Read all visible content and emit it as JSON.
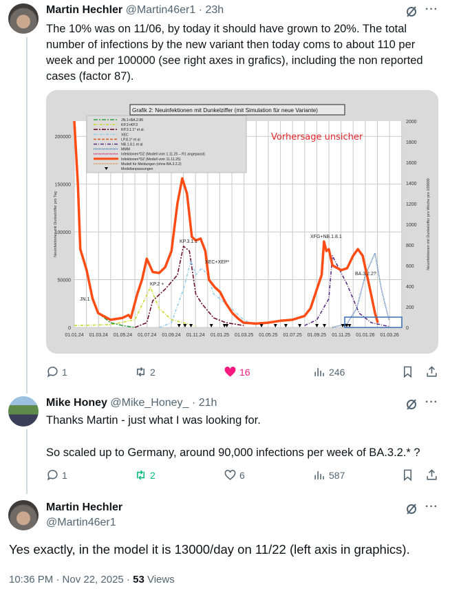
{
  "tweets": [
    {
      "name": "Martin Hechler",
      "handle": "@Martin46er1",
      "time": "23h",
      "text": "The 10% was on 11/06, by today it should have grown to 20%. The total number of infections by the new variant then today coms to about 110 per week and per 100000 (see right axes in grafics), including the non reported cases (factor 87).",
      "actions": {
        "replies": "1",
        "reposts": "2",
        "likes": "16",
        "views": "246"
      },
      "liked": true
    },
    {
      "name": "Mike Honey",
      "handle": "@Mike_Honey_",
      "time": "21h",
      "text_line1": "Thanks Martin - just what I was looking for.",
      "text_line2": "So scaled up to Germany, around 90,000 infections per week of BA.3.2.* ?",
      "actions": {
        "replies": "1",
        "reposts": "2",
        "likes": "6",
        "views": "587"
      },
      "reposted": true
    },
    {
      "name": "Martin Hechler",
      "handle": "@Martin46er1",
      "text": "Yes exactly, in the model it is 13000/day on 11/22 (left axis in graphics).",
      "timestamp": "10:36 PM · Nov 22, 2025 · ",
      "views_count": "53",
      "views_label": " Views"
    }
  ],
  "colors": {
    "like": "#f91880",
    "repost": "#00ba7c",
    "muted": "#536471",
    "forecast": "#e8262b"
  },
  "chart_data": {
    "type": "line",
    "title": "Grafik 2: Neuinfektionen mit Dunkelziffer (mit Simulation für  neue Variante)",
    "annotation_forecast": "Vorhersage unsicher",
    "ylabel_left": "Neuinfektionen mit Dunkelziffer pro Tag",
    "ylabel_right": "Neuinfektionen mit Dunkelziffer pro Woche pro 100000",
    "ylim_left": [
      0,
      216000
    ],
    "ylim_right": [
      0,
      2000
    ],
    "yticks_left": [
      "0",
      "50000",
      "100000",
      "150000",
      "200000"
    ],
    "yticks_right": [
      "0",
      "200",
      "400",
      "600",
      "800",
      "1000",
      "1200",
      "1400",
      "1600",
      "1800",
      "2000"
    ],
    "xticks": [
      "01.01.24",
      "01.03.24",
      "01.05.24",
      "01.07.24",
      "01.09.24",
      "01.11.24",
      "01.01.25",
      "01.03.25",
      "01.05.25",
      "01.07.25",
      "01.09.25",
      "01.11.25",
      "01.01.26",
      "01.03.26"
    ],
    "grid": true,
    "legend_position": "top-left",
    "legend": [
      {
        "label": "JN.1+BA.2.86",
        "color": "#2e9e3a",
        "dash": "6,2,2,2"
      },
      {
        "label": "KP.2+KP.3",
        "color": "#c5d92a",
        "dash": "4,2,1,2"
      },
      {
        "label": "KP.3.1.1* et al.",
        "color": "#6b0f2e",
        "dash": "6,2,2,2"
      },
      {
        "label": "XEC",
        "color": "#8fcdee",
        "dash": "4,2,1,2"
      },
      {
        "label": "LP.8.1* et al",
        "color": "#d9622b",
        "dash": "4,2"
      },
      {
        "label": "NB.1.8.1 et al",
        "color": "#5b2d84",
        "dash": "5,2,1,2"
      },
      {
        "label": "MMM",
        "color": "#3a6fb5",
        "dash": "1,1"
      },
      {
        "label": "Infektionen*DZ (Modell vom 1.11.25 – R1 angepasst)",
        "color": "#c2185b",
        "dash": "1,1"
      },
      {
        "label": "Infektionen*DZ (Modell vom 11.11.25)",
        "color": "#ff4b14",
        "dash": ""
      },
      {
        "label": "Modell für Meldungen (ohne BA.3.2.2)",
        "color": "#e8884a",
        "dash": "1,1"
      },
      {
        "label": "Modellanpassungen",
        "color": "#000000",
        "dash": "marker"
      }
    ],
    "annotations": [
      "JN.1",
      "KP.2 +",
      "KP.3.1.1",
      "XEC+XEP*",
      "XFG+NB.1.8.1",
      "BA.3.2.2?"
    ],
    "series": [
      {
        "name": "Infektionen*DZ (Modell vom 11.11.25)",
        "color": "#ff4b14",
        "x": [
          "2024-01-01",
          "2024-01-10",
          "2024-01-16",
          "2024-02-01",
          "2024-02-16",
          "2024-03-01",
          "2024-04-01",
          "2024-05-01",
          "2024-05-16",
          "2024-05-22",
          "2024-06-07",
          "2024-06-19",
          "2024-07-01",
          "2024-07-16",
          "2024-08-01",
          "2024-08-16",
          "2024-09-01",
          "2024-09-16",
          "2024-09-28",
          "2024-10-10",
          "2024-10-22",
          "2024-11-01",
          "2024-11-13",
          "2024-11-25",
          "2024-12-04",
          "2024-12-19",
          "2025-01-01",
          "2025-01-16",
          "2025-02-01",
          "2025-02-16",
          "2025-03-01",
          "2025-04-01",
          "2025-05-01",
          "2025-06-01",
          "2025-07-01",
          "2025-08-01",
          "2025-08-16",
          "2025-09-01",
          "2025-09-13",
          "2025-09-19",
          "2025-09-25",
          "2025-10-01",
          "2025-10-10",
          "2025-11-01",
          "2025-11-16",
          "2025-12-01",
          "2025-12-13",
          "2025-12-25",
          "2026-01-10",
          "2026-01-25",
          "2026-02-01"
        ],
        "y": [
          216000,
          150000,
          82000,
          60000,
          30000,
          15000,
          8000,
          10000,
          13000,
          10000,
          35000,
          50000,
          72000,
          58000,
          57000,
          63000,
          80000,
          130000,
          156000,
          140000,
          95000,
          91000,
          93000,
          80000,
          50000,
          42000,
          37000,
          25000,
          15000,
          9000,
          5000,
          4000,
          5000,
          7000,
          8000,
          12000,
          20000,
          40000,
          55000,
          90000,
          80000,
          82000,
          65000,
          60000,
          62000,
          75000,
          82000,
          75000,
          45000,
          15000,
          5000
        ]
      },
      {
        "name": "KP.3.1.1* et al.",
        "color": "#6b0f2e",
        "x": [
          "2024-06-01",
          "2024-07-01",
          "2024-07-16",
          "2024-08-16",
          "2024-09-16",
          "2024-10-01",
          "2024-10-16",
          "2024-11-01",
          "2024-11-16",
          "2024-12-16",
          "2025-01-16",
          "2025-03-01"
        ],
        "y": [
          0,
          5000,
          28000,
          40000,
          55000,
          85000,
          80000,
          35000,
          25000,
          10000,
          5000,
          2000
        ]
      },
      {
        "name": "XEC",
        "color": "#8fcdee",
        "x": [
          "2024-08-01",
          "2024-09-01",
          "2024-10-01",
          "2024-10-20",
          "2024-11-01",
          "2024-11-16",
          "2024-12-01",
          "2024-12-16",
          "2025-01-16",
          "2025-03-01",
          "2025-04-01"
        ],
        "y": [
          0,
          5000,
          40000,
          70000,
          55000,
          62000,
          55000,
          35000,
          25000,
          8000,
          2000
        ]
      },
      {
        "name": "KP.2+KP.3",
        "color": "#c5d92a",
        "x": [
          "2024-01-01",
          "2024-04-01",
          "2024-06-01",
          "2024-07-10",
          "2024-08-01",
          "2024-09-01",
          "2024-10-01",
          "2024-11-01"
        ],
        "y": [
          2000,
          3000,
          8000,
          42000,
          20000,
          8000,
          5000,
          1000
        ]
      },
      {
        "name": "JN.1+BA.2.86",
        "color": "#2e9e3a",
        "x": [
          "2024-01-16",
          "2024-02-01",
          "2024-02-16",
          "2024-03-01",
          "2024-04-01",
          "2024-05-01",
          "2024-06-01"
        ],
        "y": [
          82000,
          60000,
          30000,
          15000,
          5000,
          2000,
          0
        ]
      },
      {
        "name": "NB.1.8.1 et al",
        "color": "#5b2d84",
        "x": [
          "2025-08-01",
          "2025-09-01",
          "2025-10-01",
          "2025-10-10",
          "2025-11-16",
          "2025-12-16",
          "2026-01-16",
          "2026-03-01"
        ],
        "y": [
          2000,
          8000,
          30000,
          75000,
          45000,
          15000,
          5000,
          1000
        ]
      },
      {
        "name": "MMM",
        "color": "#3a6fb5",
        "x": [
          "2025-10-10",
          "2025-11-16",
          "2025-12-10",
          "2026-01-01",
          "2026-01-25",
          "2026-02-10",
          "2026-03-01"
        ],
        "y": [
          0,
          4000,
          20000,
          55000,
          78000,
          40000,
          8000
        ]
      }
    ],
    "model_adjustment_markers": [
      "2024-09-20",
      "2024-10-05",
      "2024-10-20",
      "2024-12-10",
      "2025-01-12",
      "2025-01-18",
      "2025-04-15",
      "2025-05-20",
      "2025-06-15",
      "2025-07-20",
      "2025-09-01",
      "2025-09-20",
      "2025-11-05",
      "2025-11-10",
      "2025-11-15",
      "2025-11-22"
    ]
  }
}
